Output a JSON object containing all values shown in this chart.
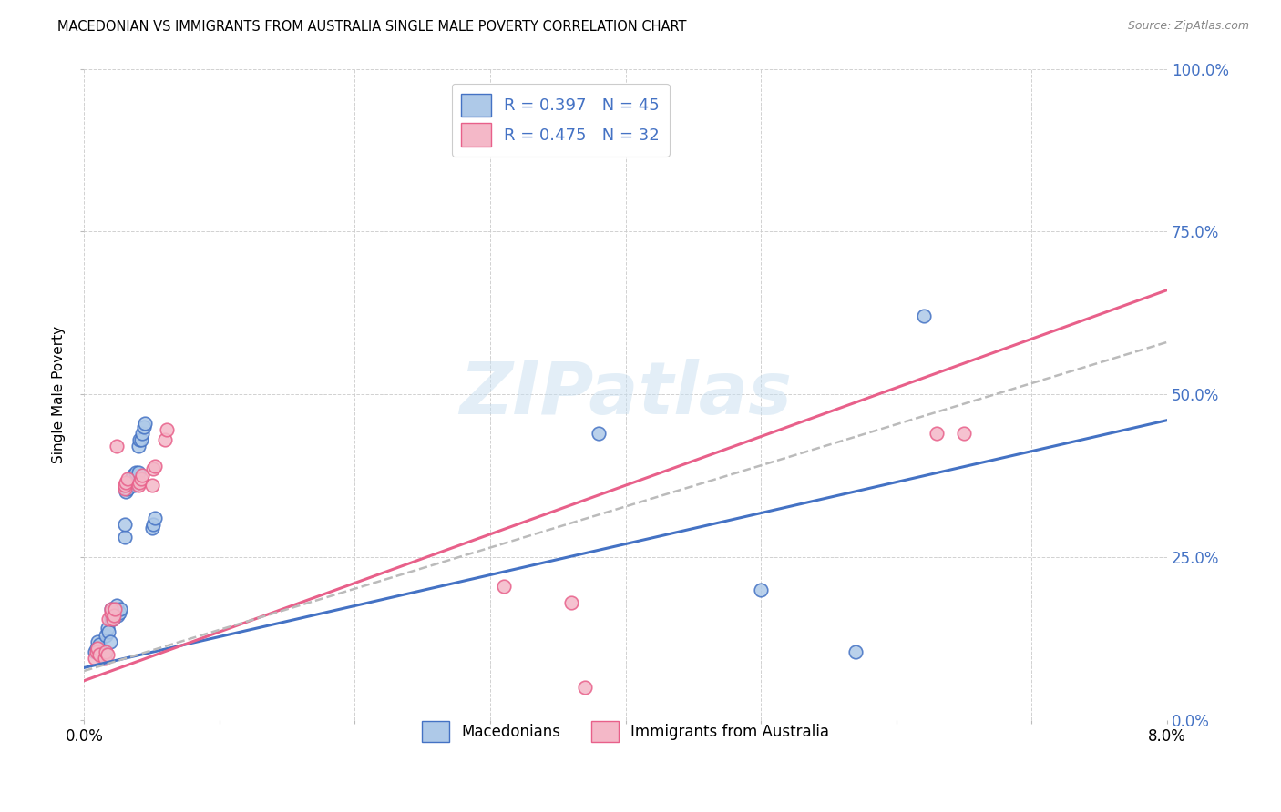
{
  "title": "MACEDONIAN VS IMMIGRANTS FROM AUSTRALIA SINGLE MALE POVERTY CORRELATION CHART",
  "source": "Source: ZipAtlas.com",
  "ylabel": "Single Male Poverty",
  "xlim": [
    0.0,
    0.08
  ],
  "ylim": [
    0.0,
    1.0
  ],
  "blue_color": "#aec9e8",
  "pink_color": "#f4b8c8",
  "blue_line_color": "#4472c4",
  "pink_line_color": "#e8608a",
  "dashed_line_color": "#bbbbbb",
  "watermark": "ZIPatlas",
  "macedonians_x": [
    0.0008,
    0.0009,
    0.001,
    0.0011,
    0.0012,
    0.0013,
    0.0015,
    0.0016,
    0.0017,
    0.0018,
    0.0019,
    0.002,
    0.002,
    0.002,
    0.0021,
    0.0022,
    0.0023,
    0.0024,
    0.0025,
    0.0026,
    0.0027,
    0.003,
    0.003,
    0.0031,
    0.0032,
    0.0033,
    0.0034,
    0.0035,
    0.0036,
    0.0037,
    0.0038,
    0.004,
    0.004,
    0.0041,
    0.0042,
    0.0043,
    0.0044,
    0.0045,
    0.005,
    0.0051,
    0.0052,
    0.038,
    0.05,
    0.057,
    0.062
  ],
  "macedonians_y": [
    0.105,
    0.11,
    0.12,
    0.115,
    0.1,
    0.095,
    0.1,
    0.13,
    0.14,
    0.135,
    0.12,
    0.155,
    0.16,
    0.17,
    0.155,
    0.165,
    0.17,
    0.175,
    0.16,
    0.165,
    0.17,
    0.28,
    0.3,
    0.35,
    0.355,
    0.36,
    0.365,
    0.37,
    0.375,
    0.36,
    0.38,
    0.38,
    0.42,
    0.43,
    0.43,
    0.44,
    0.45,
    0.455,
    0.295,
    0.3,
    0.31,
    0.44,
    0.2,
    0.105,
    0.62
  ],
  "australia_x": [
    0.0008,
    0.0009,
    0.001,
    0.0011,
    0.0015,
    0.0016,
    0.0017,
    0.0018,
    0.002,
    0.002,
    0.0021,
    0.0022,
    0.0023,
    0.0024,
    0.003,
    0.003,
    0.0031,
    0.0032,
    0.004,
    0.0041,
    0.0042,
    0.0043,
    0.005,
    0.0051,
    0.0052,
    0.006,
    0.0061,
    0.031,
    0.036,
    0.037,
    0.063,
    0.065
  ],
  "australia_y": [
    0.095,
    0.105,
    0.11,
    0.1,
    0.095,
    0.105,
    0.1,
    0.155,
    0.165,
    0.17,
    0.155,
    0.16,
    0.17,
    0.42,
    0.355,
    0.36,
    0.365,
    0.37,
    0.36,
    0.365,
    0.37,
    0.375,
    0.36,
    0.385,
    0.39,
    0.43,
    0.445,
    0.205,
    0.18,
    0.05,
    0.44,
    0.44
  ]
}
